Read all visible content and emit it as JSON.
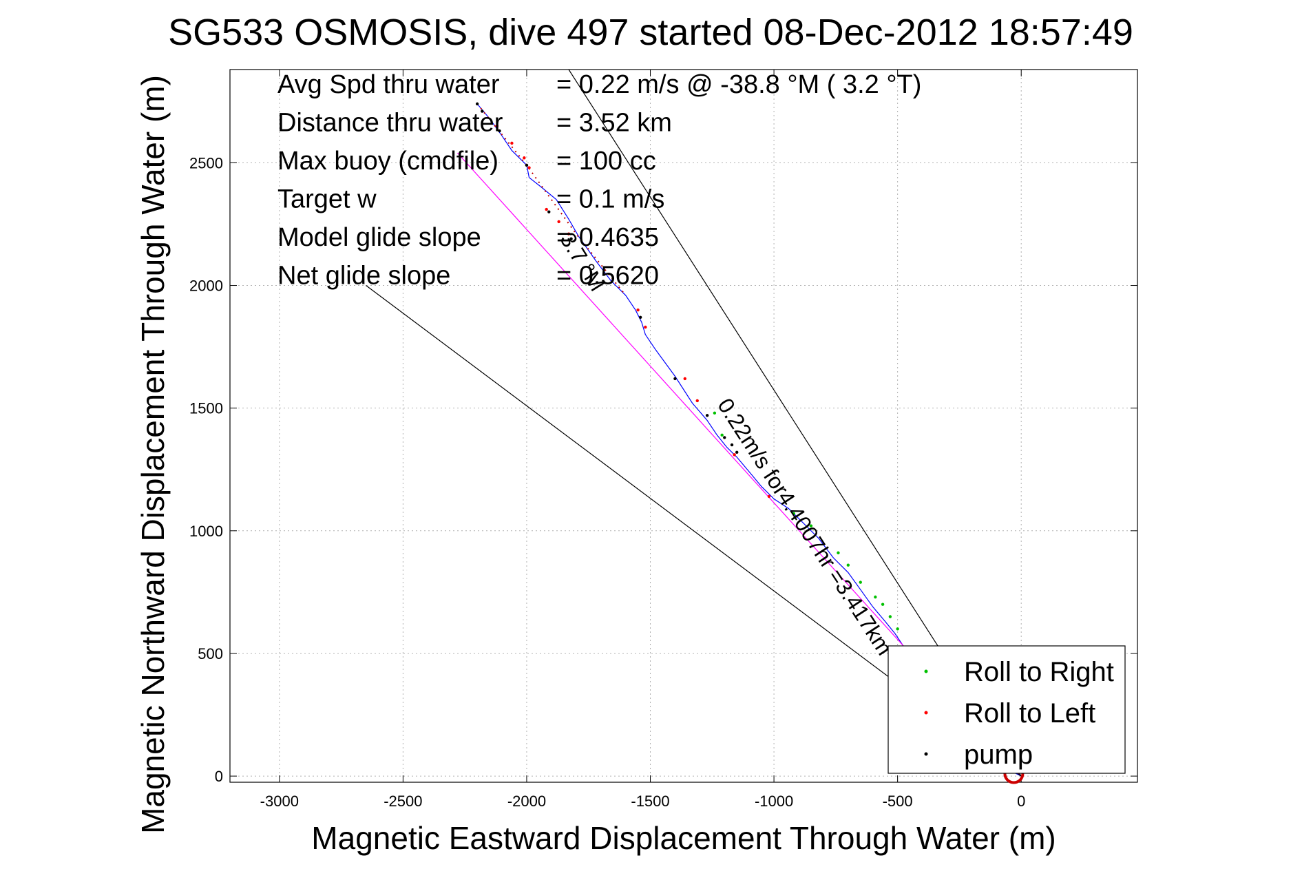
{
  "chart_data": {
    "type": "line",
    "title": "SG533 OSMOSIS, dive 497 started 08-Dec-2012 18:57:49",
    "xlabel": "Magnetic Eastward Displacement Through Water (m)",
    "ylabel": "Magnetic Northward Displacement Through Water (m)",
    "xlim": [
      -3200,
      470
    ],
    "ylim": [
      -25,
      2880
    ],
    "x_ticks": [
      -3000,
      -2500,
      -2000,
      -1500,
      -1000,
      -500,
      0
    ],
    "x_tick_labels": [
      "-3000",
      "-2500",
      "-2000",
      "-1500",
      "-1000",
      "-500",
      "0"
    ],
    "y_ticks": [
      0,
      500,
      1000,
      1500,
      2000,
      2500
    ],
    "y_tick_labels": [
      "0",
      "500",
      "1000",
      "1500",
      "2000",
      "2500"
    ],
    "grid": true,
    "stats": [
      {
        "label": "Avg Spd thru water",
        "value": "=  0.22 m/s @ -38.8 °M (  3.2 °T)"
      },
      {
        "label": "Distance thru water",
        "value": "=  3.52 km"
      },
      {
        "label": "Max buoy (cmdfile)",
        "value": "= 100 cc"
      },
      {
        "label": "Target w",
        "value": "= 0.1 m/s"
      },
      {
        "label": "Model glide slope",
        "value": "= 0.4635"
      },
      {
        "label": "Net glide slope",
        "value": "= 0.5620"
      }
    ],
    "annotations": [
      {
        "text": "3.7 °M",
        "x": -1800,
        "y": 2080,
        "rotation": 58
      },
      {
        "text": "0.22m/s for4.4007hr =3.417km",
        "x": -900,
        "y": 1000,
        "rotation": 57
      }
    ],
    "series": [
      {
        "name": "track",
        "color": "#0000ff",
        "x": [
          -2200,
          -2150,
          -2100,
          -2060,
          -2000,
          -1990,
          -1940,
          -1880,
          -1830,
          -1790,
          -1720,
          -1660,
          -1600,
          -1560,
          -1535,
          -1520,
          -1480,
          -1400,
          -1330,
          -1270,
          -1230,
          -1190,
          -1150,
          -1100,
          -1050,
          -1000,
          -940,
          -880,
          -820,
          -760,
          -700,
          -650,
          -600,
          -550,
          -510,
          -470,
          -420,
          -370,
          -300,
          -200,
          -100,
          -40,
          0
        ],
        "y": [
          2740,
          2680,
          2610,
          2550,
          2490,
          2440,
          2400,
          2350,
          2270,
          2200,
          2100,
          2020,
          1960,
          1900,
          1850,
          1800,
          1740,
          1630,
          1520,
          1450,
          1390,
          1340,
          1300,
          1240,
          1180,
          1130,
          1090,
          1030,
          970,
          890,
          830,
          760,
          690,
          630,
          580,
          520,
          460,
          380,
          270,
          160,
          70,
          20,
          0
        ]
      },
      {
        "name": "track-dotted",
        "color": "#c00000",
        "x": [
          -2200,
          -2000,
          -1800,
          -1600
        ],
        "y": [
          2740,
          2490,
          2210,
          1960
        ]
      },
      {
        "name": "magenta line",
        "color": "#ff00ff",
        "x": [
          -2280,
          0
        ],
        "y": [
          2540,
          0
        ]
      },
      {
        "name": "black line 1",
        "color": "#000000",
        "x": [
          -1830,
          0
        ],
        "y": [
          2880,
          0
        ]
      },
      {
        "name": "black line 2",
        "color": "#000000",
        "x": [
          -2650,
          0
        ],
        "y": [
          2000,
          0
        ]
      }
    ],
    "markers": {
      "roll_right": {
        "color": "#00c000",
        "x": [
          -1240,
          -1210,
          -920,
          -850,
          -740,
          -700,
          -650,
          -590,
          -560,
          -530,
          -500
        ],
        "y": [
          1480,
          1390,
          1070,
          1020,
          910,
          860,
          790,
          730,
          700,
          650,
          600
        ]
      },
      "roll_left": {
        "color": "#ff0000",
        "x": [
          -2120,
          -2060,
          -2010,
          -1990,
          -1920,
          -1870,
          -1830,
          -1550,
          -1520,
          -1360,
          -1310,
          -1160,
          -1020
        ],
        "y": [
          2650,
          2580,
          2520,
          2480,
          2310,
          2260,
          2210,
          1900,
          1830,
          1620,
          1530,
          1310,
          1140
        ]
      },
      "pump": {
        "color": "#000000",
        "x": [
          -2200,
          -2180,
          -2110,
          -2000,
          -1910,
          -1820,
          -1740,
          -1540,
          -1400,
          -1270,
          -1200,
          -1170,
          -1150
        ],
        "y": [
          2740,
          2710,
          2630,
          2490,
          2300,
          2190,
          2040,
          1870,
          1620,
          1470,
          1380,
          1350,
          1320
        ]
      },
      "end_circle": {
        "color": "#cc0000",
        "x": -30,
        "y": 10
      }
    },
    "legend": {
      "placement": "bottom-right",
      "entries": [
        {
          "label": "Roll to Right",
          "color": "#00c000"
        },
        {
          "label": "Roll to Left",
          "color": "#ff0000"
        },
        {
          "label": "pump",
          "color": "#000000"
        }
      ]
    }
  }
}
